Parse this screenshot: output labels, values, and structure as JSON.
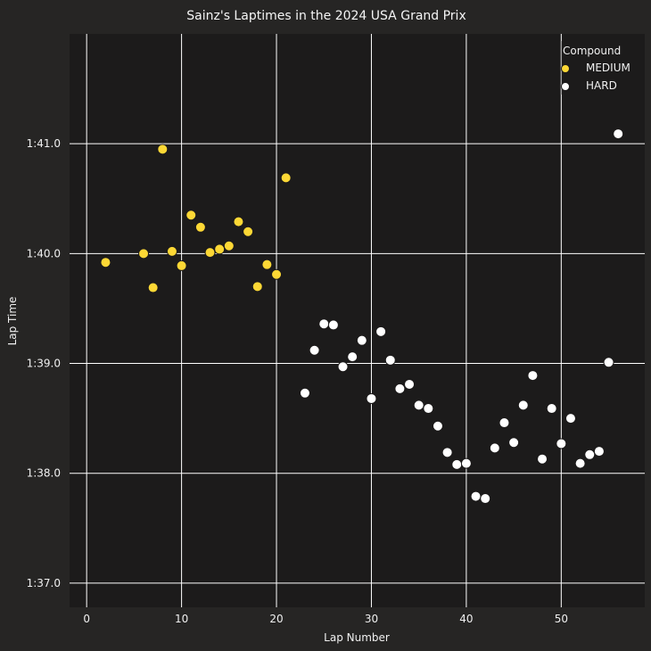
{
  "chart_data": {
    "type": "scatter",
    "title": "Sainz's Laptimes in the 2024 USA Grand Prix",
    "xlabel": "Lap Number",
    "ylabel": "Lap Time",
    "xlim": [
      -1.8,
      58.8
    ],
    "ylim": [
      96.78,
      102.0
    ],
    "x_ticks": [
      0,
      10,
      20,
      30,
      40,
      50
    ],
    "y_ticks": [
      {
        "value": 97.0,
        "label": "1:37.0"
      },
      {
        "value": 98.0,
        "label": "1:38.0"
      },
      {
        "value": 99.0,
        "label": "1:39.0"
      },
      {
        "value": 100.0,
        "label": "1:40.0"
      },
      {
        "value": 101.0,
        "label": "1:41.0"
      }
    ],
    "grid": true,
    "legend": {
      "title": "Compound",
      "position": "top-right"
    },
    "series": [
      {
        "name": "MEDIUM",
        "color": "#fdd835",
        "points": [
          [
            2,
            99.92
          ],
          [
            6,
            100.0
          ],
          [
            7,
            99.69
          ],
          [
            8,
            100.95
          ],
          [
            9,
            100.02
          ],
          [
            10,
            99.89
          ],
          [
            11,
            100.35
          ],
          [
            12,
            100.24
          ],
          [
            13,
            100.01
          ],
          [
            14,
            100.04
          ],
          [
            15,
            100.07
          ],
          [
            16,
            100.29
          ],
          [
            17,
            100.2
          ],
          [
            18,
            99.7
          ],
          [
            19,
            99.9
          ],
          [
            20,
            99.81
          ],
          [
            21,
            100.69
          ]
        ]
      },
      {
        "name": "HARD",
        "color": "#ffffff",
        "points": [
          [
            23,
            98.73
          ],
          [
            24,
            99.12
          ],
          [
            25,
            99.36
          ],
          [
            26,
            99.35
          ],
          [
            27,
            98.97
          ],
          [
            28,
            99.06
          ],
          [
            29,
            99.21
          ],
          [
            30,
            98.68
          ],
          [
            31,
            99.29
          ],
          [
            32,
            99.03
          ],
          [
            33,
            98.77
          ],
          [
            34,
            98.81
          ],
          [
            35,
            98.62
          ],
          [
            36,
            98.59
          ],
          [
            37,
            98.43
          ],
          [
            38,
            98.19
          ],
          [
            39,
            98.08
          ],
          [
            40,
            98.09
          ],
          [
            41,
            97.79
          ],
          [
            42,
            97.77
          ],
          [
            43,
            98.23
          ],
          [
            44,
            98.46
          ],
          [
            45,
            98.28
          ],
          [
            46,
            98.62
          ],
          [
            47,
            98.89
          ],
          [
            48,
            98.13
          ],
          [
            49,
            98.59
          ],
          [
            50,
            98.27
          ],
          [
            51,
            98.5
          ],
          [
            52,
            98.09
          ],
          [
            53,
            98.17
          ],
          [
            54,
            98.2
          ],
          [
            55,
            99.01
          ],
          [
            56,
            101.09
          ]
        ]
      }
    ]
  }
}
